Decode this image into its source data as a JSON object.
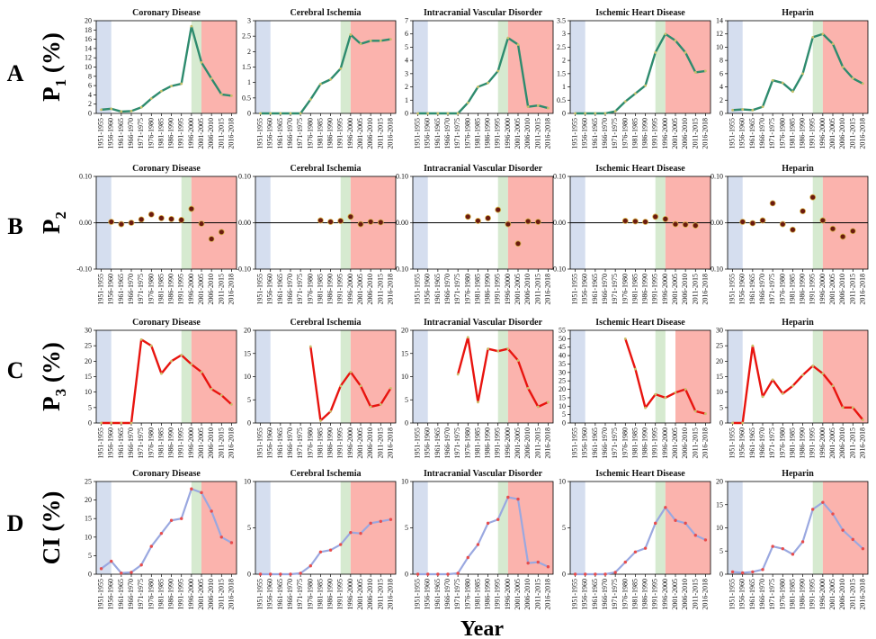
{
  "figure": {
    "xlabel": "Year",
    "colors": {
      "blue_band": "#d5deef",
      "green_band": "#d6ead0",
      "red_band": "#fbb3ad",
      "line_a": "#2e8b6e",
      "line_c": "#e8140f",
      "line_d": "#9aa8e0",
      "point_b": "#6b1a10",
      "point_d": "#e84c4c"
    }
  },
  "x_categories": [
    "1951-1955",
    "1956-1960",
    "1961-1965",
    "1966-1970",
    "1971-1975",
    "1976-1980",
    "1981-1985",
    "1986-1990",
    "1991-1995",
    "1996-2000",
    "2001-2005",
    "2006-2010",
    "2011-2015",
    "2016-2018"
  ],
  "rows": [
    {
      "letter": "A",
      "ylabel_main": "P",
      "ylabel_sub": "1",
      "ylabel_tail": " (%)",
      "type": "line"
    },
    {
      "letter": "B",
      "ylabel_main": "P",
      "ylabel_sub": "2",
      "ylabel_tail": "",
      "type": "scatter"
    },
    {
      "letter": "C",
      "ylabel_main": "P",
      "ylabel_sub": "3",
      "ylabel_tail": " (%)",
      "type": "line"
    },
    {
      "letter": "D",
      "ylabel_main": "CI (%)",
      "ylabel_sub": "",
      "ylabel_tail": "",
      "type": "line"
    }
  ],
  "chart_data": [
    {
      "row": "A",
      "type": "line",
      "title": "Coronary Disease",
      "ylim": [
        0,
        20
      ],
      "yticks": [
        0,
        2,
        4,
        6,
        8,
        10,
        12,
        14,
        16,
        18,
        20
      ],
      "bands": {
        "blue": [
          0,
          1
        ],
        "green": [
          9,
          10
        ],
        "red": [
          10,
          13
        ]
      },
      "values": [
        0.8,
        1.0,
        0.4,
        0.5,
        1.3,
        3.2,
        4.8,
        5.9,
        6.4,
        18.8,
        11.0,
        7.5,
        4.1,
        3.8
      ]
    },
    {
      "row": "A",
      "type": "line",
      "title": "Cerebral Ischemia",
      "ylim": [
        0,
        3
      ],
      "yticks": [
        0,
        0.5,
        1,
        1.5,
        2,
        2.5,
        3
      ],
      "bands": {
        "blue": [
          0,
          1
        ],
        "green": [
          8,
          9
        ],
        "red": [
          9,
          13
        ]
      },
      "values": [
        0,
        0,
        0,
        0,
        0,
        0.45,
        0.95,
        1.1,
        1.45,
        2.55,
        2.25,
        2.35,
        2.35,
        2.4
      ]
    },
    {
      "row": "A",
      "type": "line",
      "title": "Intracranial Vascular Disorder",
      "ylim": [
        0,
        7
      ],
      "yticks": [
        0,
        1,
        2,
        3,
        4,
        5,
        6,
        7
      ],
      "bands": {
        "blue": [
          0,
          1
        ],
        "green": [
          8,
          9
        ],
        "red": [
          9,
          13
        ]
      },
      "values": [
        0,
        0,
        0,
        0,
        0,
        0.8,
        2.0,
        2.3,
        3.2,
        5.7,
        5.2,
        0.5,
        0.6,
        0.4
      ]
    },
    {
      "row": "A",
      "type": "line",
      "title": "Ischemic Heart Disease",
      "ylim": [
        0,
        3.5
      ],
      "yticks": [
        0,
        0.5,
        1,
        1.5,
        2,
        2.5,
        3,
        3.5
      ],
      "bands": {
        "blue": [
          0,
          1
        ],
        "green": [
          8,
          9
        ],
        "red": [
          9,
          13
        ]
      },
      "values": [
        0,
        0,
        0,
        0,
        0.08,
        0.45,
        0.75,
        1.05,
        2.3,
        3.0,
        2.75,
        2.3,
        1.55,
        1.6
      ]
    },
    {
      "row": "A",
      "type": "line",
      "title": "Heparin",
      "ylim": [
        0,
        14
      ],
      "yticks": [
        0,
        2,
        4,
        6,
        8,
        10,
        12,
        14
      ],
      "bands": {
        "blue": [
          0,
          1
        ],
        "green": [
          8,
          9
        ],
        "red": [
          9,
          13
        ]
      },
      "values": [
        0.5,
        0.6,
        0.5,
        1.0,
        5.0,
        4.6,
        3.3,
        6.0,
        11.5,
        12.0,
        10.5,
        7.0,
        5.3,
        4.5
      ]
    },
    {
      "row": "B",
      "type": "scatter",
      "title": "Coronary Disease",
      "ylim": [
        -0.1,
        0.1
      ],
      "yticks": [
        -0.1,
        0.0,
        0.1
      ],
      "bands": {
        "blue": [
          0,
          1
        ],
        "green": [
          8,
          9
        ],
        "red": [
          9,
          13
        ]
      },
      "values": [
        null,
        0.002,
        -0.003,
        0.0,
        0.007,
        0.018,
        0.01,
        0.008,
        0.006,
        0.03,
        -0.002,
        -0.035,
        -0.02,
        null
      ]
    },
    {
      "row": "B",
      "type": "scatter",
      "title": "Cerebral Ischemia",
      "ylim": [
        -0.1,
        0.1
      ],
      "yticks": [
        -0.1,
        0.0,
        0.1
      ],
      "bands": {
        "blue": [
          0,
          1
        ],
        "green": [
          8,
          9
        ],
        "red": [
          9,
          13
        ]
      },
      "values": [
        null,
        null,
        null,
        null,
        null,
        null,
        0.005,
        0.002,
        0.004,
        0.013,
        -0.003,
        0.002,
        0.001,
        null
      ]
    },
    {
      "row": "B",
      "type": "scatter",
      "title": "Intracranial Vascular Disorder",
      "ylim": [
        -0.1,
        0.1
      ],
      "yticks": [
        -0.1,
        0.0,
        0.1
      ],
      "bands": {
        "blue": [
          0,
          1
        ],
        "green": [
          8,
          9
        ],
        "red": [
          9,
          13
        ]
      },
      "values": [
        null,
        null,
        null,
        null,
        null,
        0.013,
        0.004,
        0.01,
        0.028,
        -0.003,
        -0.045,
        0.003,
        0.002,
        null
      ]
    },
    {
      "row": "B",
      "type": "scatter",
      "title": "Ischemic Heart Disease",
      "ylim": [
        -0.1,
        0.1
      ],
      "yticks": [
        -0.1,
        0.0,
        0.1
      ],
      "bands": {
        "blue": [
          0,
          1
        ],
        "green": [
          8,
          9
        ],
        "red": [
          9,
          13
        ]
      },
      "values": [
        null,
        null,
        null,
        null,
        null,
        0.004,
        0.003,
        0.002,
        0.013,
        0.008,
        -0.003,
        -0.004,
        -0.006,
        null
      ]
    },
    {
      "row": "B",
      "type": "scatter",
      "title": "Heparin",
      "ylim": [
        -0.1,
        0.1
      ],
      "yticks": [
        -0.1,
        0.0,
        0.1
      ],
      "bands": {
        "blue": [
          0,
          1
        ],
        "green": [
          8,
          9
        ],
        "red": [
          9,
          13
        ]
      },
      "values": [
        null,
        0.002,
        -0.001,
        0.005,
        0.042,
        -0.003,
        -0.015,
        0.025,
        0.055,
        0.005,
        -0.013,
        -0.03,
        -0.018,
        null
      ]
    },
    {
      "row": "C",
      "type": "line",
      "title": "Coronary Disease",
      "ylim": [
        0,
        30
      ],
      "yticks": [
        0,
        5,
        10,
        15,
        20,
        25,
        30
      ],
      "bands": {
        "blue": [
          0,
          1
        ],
        "green": [
          8,
          9
        ],
        "red": [
          9,
          13
        ]
      },
      "values": [
        0,
        0,
        0,
        0,
        27,
        25,
        16,
        20,
        22,
        19,
        16.5,
        11,
        9,
        6
      ]
    },
    {
      "row": "C",
      "type": "line",
      "title": "Cerebral Ischemia",
      "ylim": [
        0,
        20
      ],
      "yticks": [
        0,
        5,
        10,
        15,
        20
      ],
      "bands": {
        "blue": [
          0,
          1
        ],
        "green": [
          8,
          9
        ],
        "red": [
          9,
          13
        ]
      },
      "values": [
        null,
        null,
        null,
        null,
        null,
        16.5,
        0.5,
        2.5,
        8,
        11,
        8,
        3.5,
        4,
        7.5
      ]
    },
    {
      "row": "C",
      "type": "line",
      "title": "Intracranial Vascular Disorder",
      "ylim": [
        0,
        20
      ],
      "yticks": [
        0,
        5,
        10,
        15,
        20
      ],
      "bands": {
        "blue": [
          0,
          1
        ],
        "green": [
          8,
          9
        ],
        "red": [
          9,
          13
        ]
      },
      "values": [
        null,
        null,
        null,
        null,
        10.5,
        18.5,
        4.5,
        16,
        15.5,
        16,
        13.5,
        7.5,
        3.5,
        4.5
      ]
    },
    {
      "row": "C",
      "type": "line",
      "title": "Ischemic Heart Disease",
      "ylim": [
        0,
        55
      ],
      "yticks": [
        0,
        5,
        10,
        15,
        20,
        25,
        30,
        35,
        40,
        45,
        50,
        55
      ],
      "bands": {
        "blue": [
          0,
          1
        ],
        "green": [
          8,
          9
        ],
        "red": [
          10,
          13
        ]
      },
      "values": [
        null,
        null,
        null,
        null,
        null,
        50,
        32,
        9,
        17,
        15,
        18,
        20,
        7,
        5.5
      ]
    },
    {
      "row": "C",
      "type": "line",
      "title": "Heparin",
      "ylim": [
        0,
        30
      ],
      "yticks": [
        0,
        5,
        10,
        15,
        20,
        25,
        30
      ],
      "bands": {
        "blue": [
          0,
          1
        ],
        "green": [
          8,
          9
        ],
        "red": [
          9,
          13
        ]
      },
      "values": [
        0,
        0,
        25,
        8.5,
        14,
        9.5,
        12,
        15.5,
        18.5,
        16,
        12,
        5,
        5,
        1
      ]
    },
    {
      "row": "D",
      "type": "line",
      "title": "Coronary Disease",
      "ylim": [
        0,
        25
      ],
      "yticks": [
        0,
        5,
        10,
        15,
        20,
        25
      ],
      "bands": {
        "blue": [
          0,
          1
        ],
        "green": [
          9,
          10
        ],
        "red": [
          10,
          13
        ]
      },
      "values": [
        1.5,
        3.5,
        0.3,
        0.5,
        2.5,
        7.5,
        11,
        14.5,
        15,
        23,
        22,
        17,
        10,
        8.5
      ]
    },
    {
      "row": "D",
      "type": "line",
      "title": "Cerebral Ischemia",
      "ylim": [
        0,
        10
      ],
      "yticks": [
        0,
        5,
        10
      ],
      "bands": {
        "blue": [
          0,
          1
        ],
        "green": [
          8,
          9
        ],
        "red": [
          9,
          13
        ]
      },
      "values": [
        0,
        0,
        0,
        0,
        0.1,
        0.9,
        2.4,
        2.6,
        3.2,
        4.5,
        4.4,
        5.5,
        5.7,
        5.9
      ]
    },
    {
      "row": "D",
      "type": "line",
      "title": "Intracranial Vascular Disorder",
      "ylim": [
        0,
        10
      ],
      "yticks": [
        0,
        5,
        10
      ],
      "bands": {
        "blue": [
          0,
          1
        ],
        "green": [
          8,
          9
        ],
        "red": [
          9,
          13
        ]
      },
      "values": [
        0,
        0,
        0,
        0,
        0.1,
        1.8,
        3.2,
        5.5,
        5.9,
        8.3,
        8.1,
        1.2,
        1.3,
        0.8
      ]
    },
    {
      "row": "D",
      "type": "line",
      "title": "Ischemic Heart Disease",
      "ylim": [
        0,
        10
      ],
      "yticks": [
        0,
        5,
        10
      ],
      "bands": {
        "blue": [
          0,
          1
        ],
        "green": [
          8,
          9
        ],
        "red": [
          9,
          13
        ]
      },
      "values": [
        0,
        0,
        0,
        0,
        0.2,
        1.3,
        2.4,
        2.8,
        5.5,
        7.2,
        5.8,
        5.5,
        4.2,
        3.7
      ]
    },
    {
      "row": "D",
      "type": "line",
      "title": "Heparin",
      "ylim": [
        0,
        20
      ],
      "yticks": [
        0,
        5,
        10,
        15,
        20
      ],
      "bands": {
        "blue": [
          0,
          1
        ],
        "green": [
          8,
          9
        ],
        "red": [
          9,
          13
        ]
      },
      "values": [
        0.5,
        0.3,
        0.5,
        1.0,
        6.0,
        5.5,
        4.3,
        7.0,
        14.0,
        15.5,
        13.0,
        9.5,
        7.5,
        5.5
      ]
    }
  ]
}
